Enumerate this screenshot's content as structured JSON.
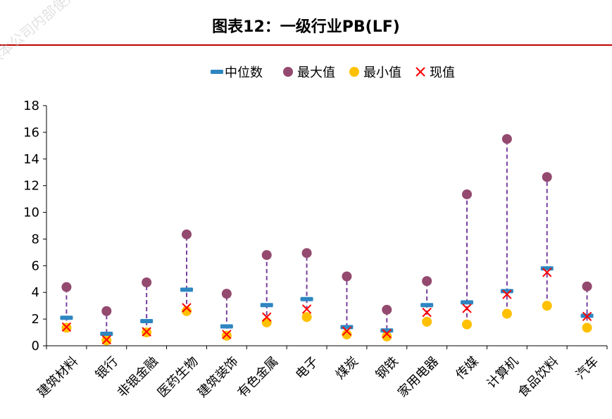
{
  "header": {
    "title": "图表12：一级行业PB(LF)",
    "watermark": "仅供本公司内部使用，不可传播"
  },
  "colors": {
    "median": "#2e86c1",
    "max": "#94496f",
    "min": "#ffc000",
    "current": "#ff0000",
    "range_line": "#7b3f9e",
    "rule": "#c00000"
  },
  "chart_data": {
    "type": "scatter",
    "title": "",
    "xlabel": "",
    "ylabel": "",
    "ylim": [
      0,
      18
    ],
    "yticks": [
      0,
      2,
      4,
      6,
      8,
      10,
      12,
      14,
      16,
      18
    ],
    "grid": false,
    "legend_position": "top-center",
    "categories": [
      "建筑材料",
      "银行",
      "非银金融",
      "医药生物",
      "建筑装饰",
      "有色金属",
      "电子",
      "煤炭",
      "钢铁",
      "家用电器",
      "传媒",
      "计算机",
      "食品饮料",
      "汽车"
    ],
    "series": [
      {
        "name": "中位数",
        "marker": "dash",
        "values": [
          2.1,
          0.9,
          1.85,
          4.2,
          1.45,
          3.05,
          3.5,
          1.4,
          1.15,
          3.05,
          3.25,
          4.1,
          5.8,
          2.25
        ]
      },
      {
        "name": "最大值",
        "marker": "circle",
        "values": [
          4.4,
          2.6,
          4.75,
          8.35,
          3.9,
          6.8,
          6.95,
          5.2,
          2.7,
          4.85,
          11.35,
          15.5,
          12.65,
          4.45
        ]
      },
      {
        "name": "最小值",
        "marker": "circle",
        "values": [
          1.35,
          0.4,
          1.0,
          2.6,
          0.75,
          1.75,
          2.15,
          0.85,
          0.7,
          1.8,
          1.6,
          2.4,
          3.0,
          1.35
        ]
      },
      {
        "name": "现值",
        "marker": "x",
        "values": [
          1.4,
          0.45,
          1.05,
          2.85,
          0.85,
          2.15,
          2.75,
          1.1,
          0.9,
          2.5,
          2.8,
          3.85,
          5.5,
          2.2
        ]
      }
    ]
  }
}
